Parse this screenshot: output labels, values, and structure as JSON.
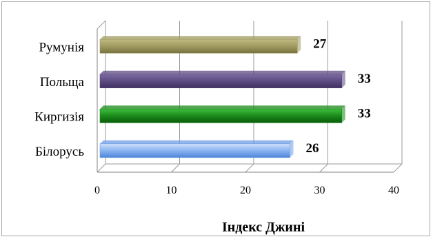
{
  "chart_data": {
    "type": "bar",
    "orientation": "horizontal",
    "categories": [
      "Білорусь",
      "Киргизія",
      "Польща",
      "Румунія"
    ],
    "values": [
      26,
      33,
      33,
      27
    ],
    "colors": [
      "#6f9fe6",
      "#1a8a1a",
      "#5c4a80",
      "#a09a60"
    ],
    "title": "",
    "xlabel": "Індекс Джині",
    "ylabel": "",
    "xlim": [
      0,
      40
    ],
    "xticks": [
      0,
      10,
      20,
      30,
      40
    ],
    "grid": true,
    "legend": "none",
    "data_labels": [
      "26",
      "33",
      "33",
      "27"
    ]
  }
}
